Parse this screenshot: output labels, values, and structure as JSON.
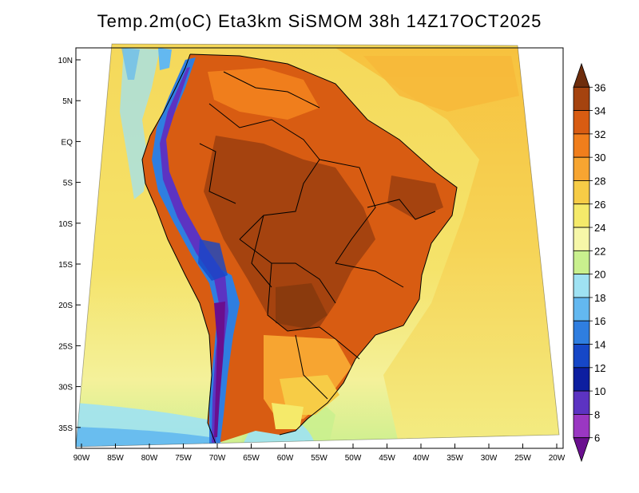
{
  "title": "Temp.2m(oC) Eta3km SiSMOM 38h 14Z17OCT2025",
  "map": {
    "lat_labels": [
      "10N",
      "5N",
      "EQ",
      "5S",
      "10S",
      "15S",
      "20S",
      "25S",
      "30S",
      "35S"
    ],
    "lon_labels": [
      "90W",
      "85W",
      "80W",
      "75W",
      "70W",
      "65W",
      "60W",
      "55W",
      "50W",
      "45W",
      "40W",
      "35W",
      "30W",
      "25W",
      "20W"
    ],
    "extent": {
      "lon_min": -91,
      "lon_max": -20,
      "lat_min": -38,
      "lat_max": 12
    }
  },
  "colorbar": {
    "labels": [
      "36",
      "34",
      "32",
      "30",
      "28",
      "26",
      "24",
      "22",
      "20",
      "18",
      "16",
      "14",
      "12",
      "10",
      "8",
      "6"
    ],
    "colors": [
      "#6e2d0c",
      "#a5430f",
      "#d85c12",
      "#f07e1c",
      "#f7a531",
      "#f7cc46",
      "#f5ea6a",
      "#f6f7a8",
      "#c9f08e",
      "#9fe2f3",
      "#63b8f0",
      "#2f7ee0",
      "#1647c7",
      "#0d1ea0",
      "#5c33c2",
      "#9a37c2",
      "#6a0f8f"
    ]
  }
}
